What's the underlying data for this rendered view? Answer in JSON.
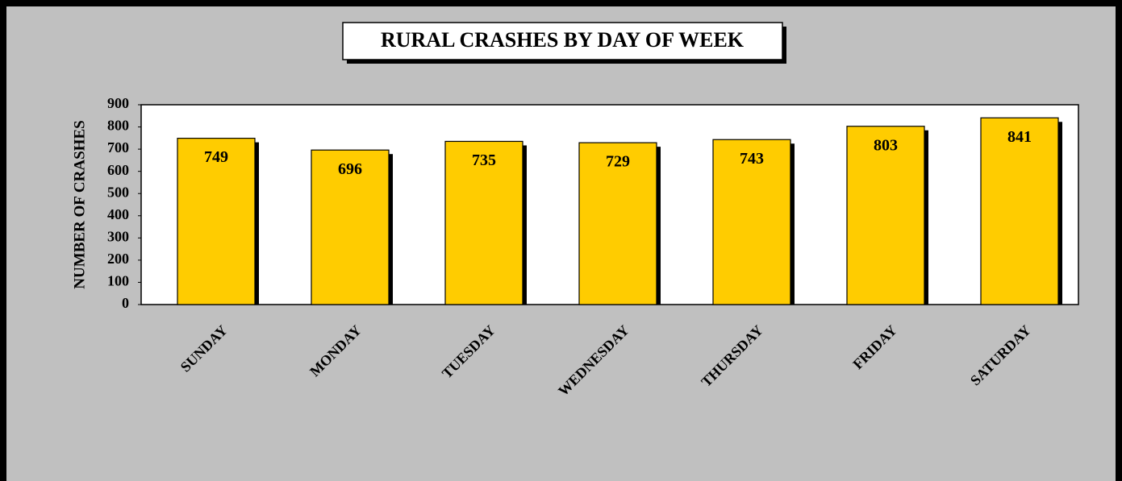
{
  "chart_data": {
    "type": "bar",
    "title": "RURAL CRASHES BY DAY OF WEEK",
    "y_label": "NUMBER OF CRASHES",
    "categories": [
      "SUNDAY",
      "MONDAY",
      "TUESDAY",
      "WEDNESDAY",
      "THURSDAY",
      "FRIDAY",
      "SATURDAY"
    ],
    "values": [
      749,
      696,
      735,
      729,
      743,
      803,
      841
    ],
    "color": "#ffcc00",
    "ylim": [
      0,
      900
    ],
    "yticks": [
      0,
      100,
      200,
      300,
      400,
      500,
      600,
      700,
      800,
      900
    ],
    "grid": false
  }
}
